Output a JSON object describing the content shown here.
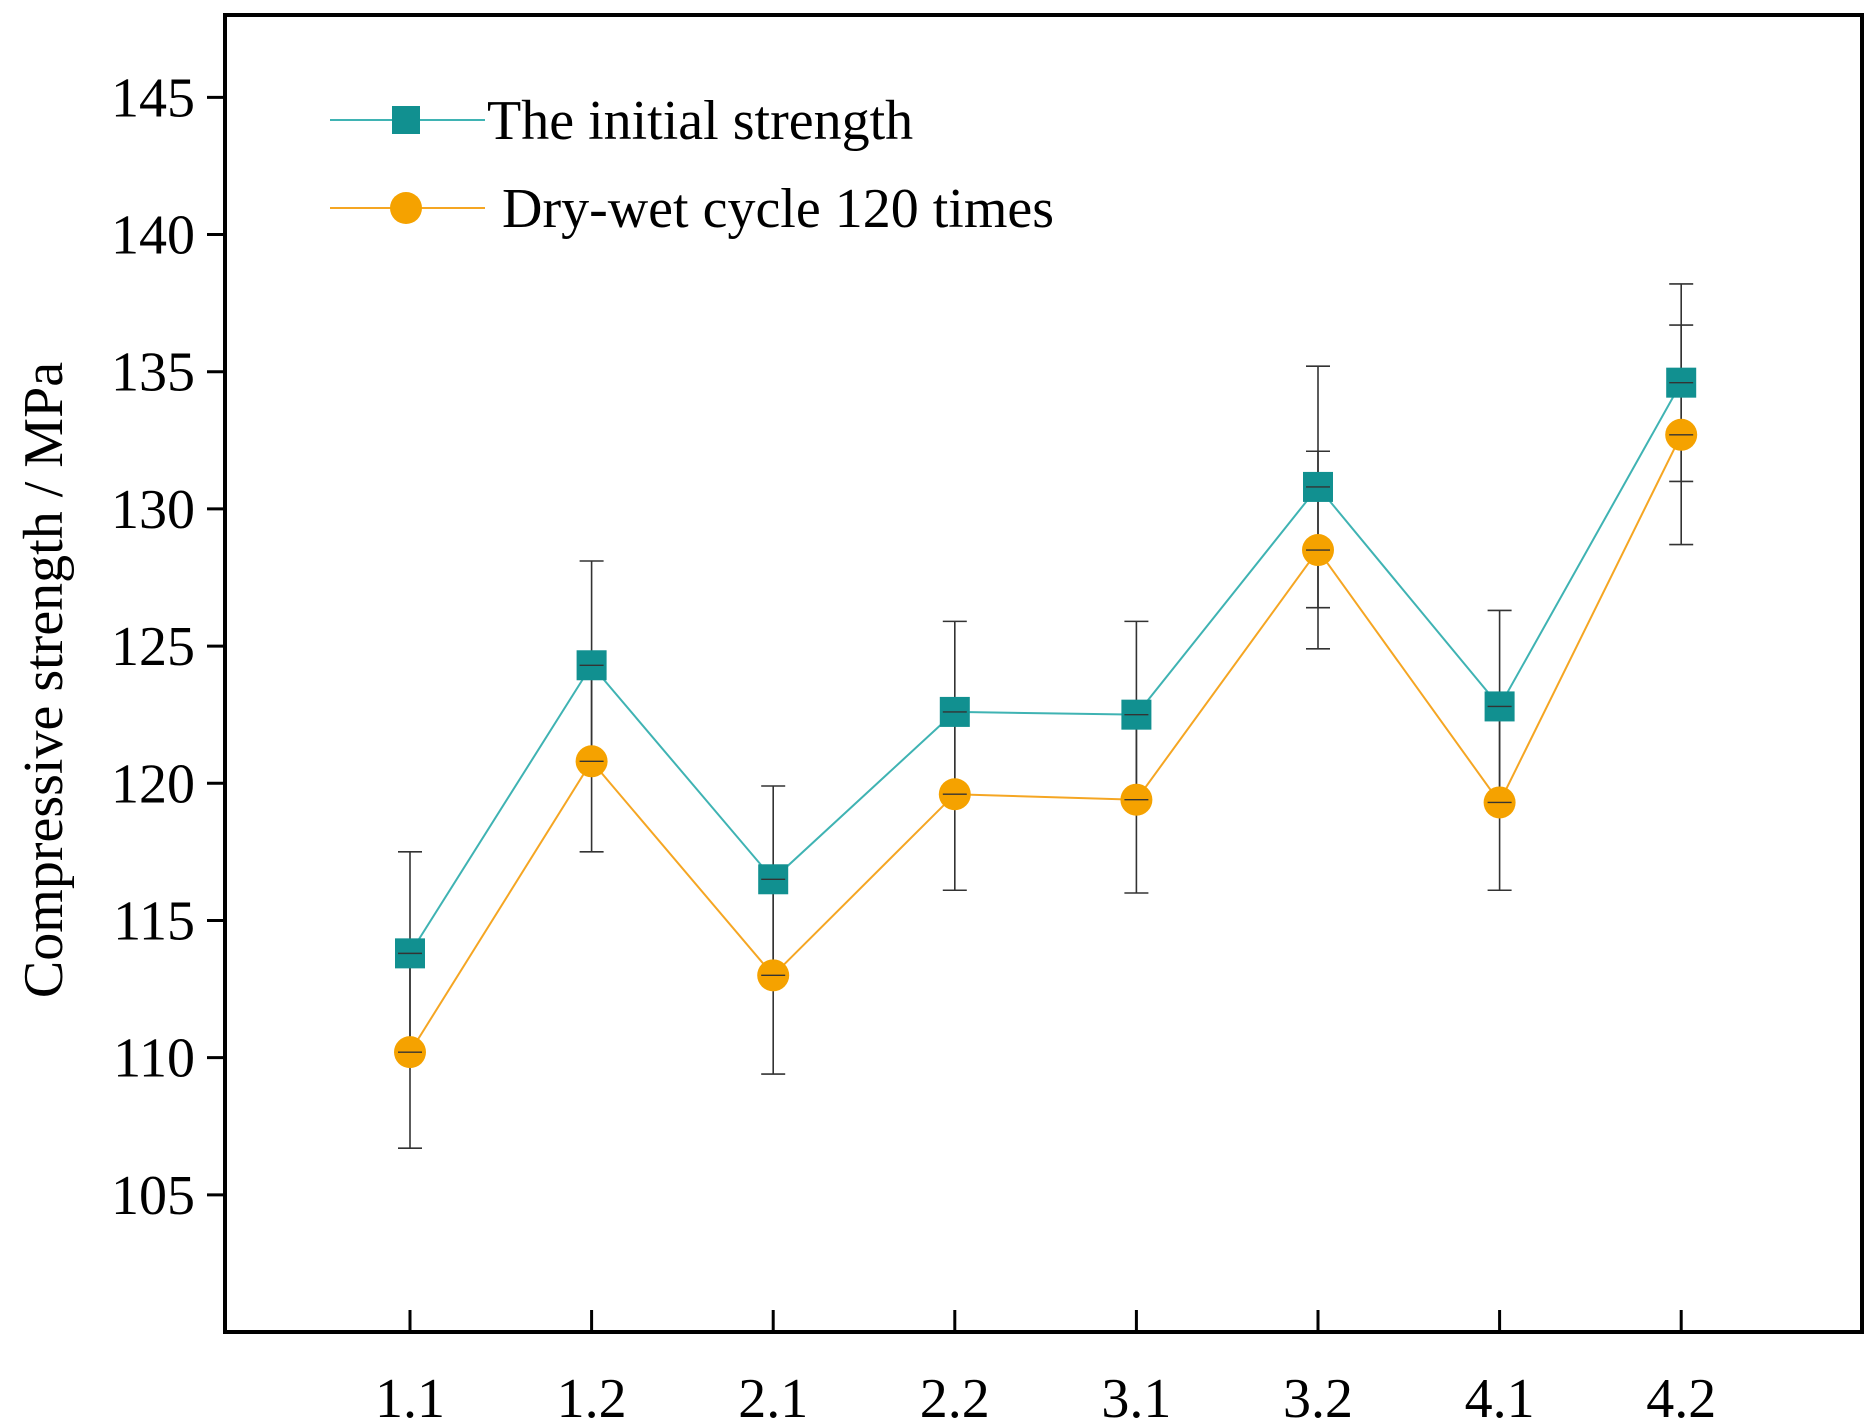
{
  "chart_data": {
    "type": "line",
    "title": "",
    "xlabel": "",
    "ylabel": "Compressive strength / MPa",
    "categories": [
      "1.1",
      "1.2",
      "2.1",
      "2.2",
      "3.1",
      "3.2",
      "4.1",
      "4.2"
    ],
    "ylim": [
      100,
      148
    ],
    "yticks": [
      105,
      110,
      115,
      120,
      125,
      130,
      135,
      140,
      145
    ],
    "series": [
      {
        "name": "The initial strength",
        "marker": "square",
        "line_color": "#3fb3b3",
        "marker_color": "#119090",
        "values": [
          113.8,
          124.3,
          116.5,
          122.6,
          122.5,
          130.8,
          122.8,
          134.6
        ],
        "error": [
          3.7,
          3.8,
          3.4,
          3.3,
          3.4,
          4.4,
          3.5,
          3.6
        ]
      },
      {
        "name": "Dry-wet cycle 120 times",
        "marker": "circle",
        "line_color": "#f5a623",
        "marker_color": "#f5a200",
        "values": [
          110.2,
          120.8,
          113.0,
          119.6,
          119.4,
          128.5,
          119.3,
          132.7
        ],
        "error": [
          3.5,
          3.3,
          3.6,
          3.5,
          3.4,
          3.6,
          3.2,
          4.0
        ]
      }
    ],
    "grid": false,
    "legend_position": "top-left"
  }
}
